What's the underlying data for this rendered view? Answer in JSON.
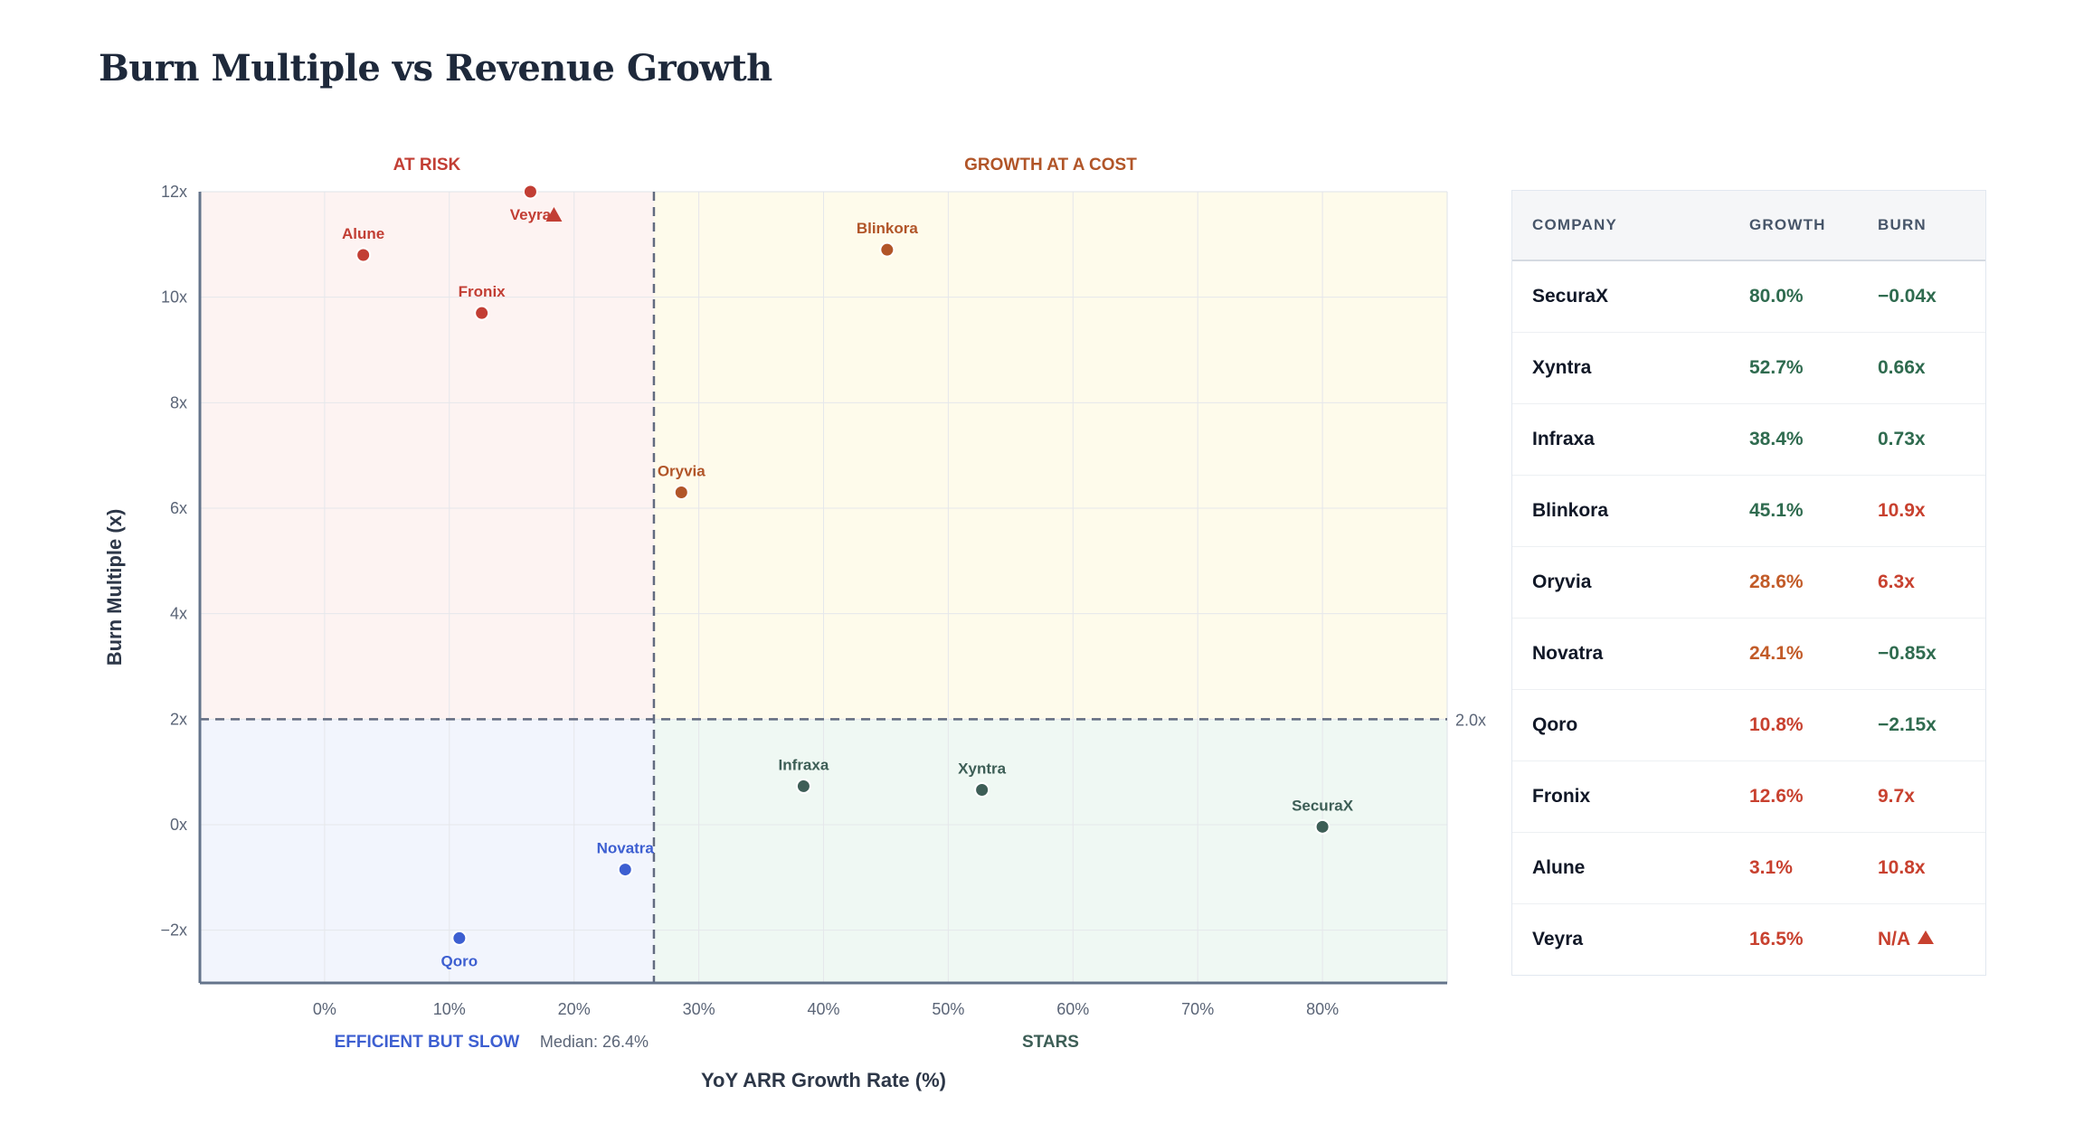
{
  "title": "Burn Multiple vs Revenue Growth",
  "colors": {
    "red": "#c23e34",
    "orange": "#b15528",
    "green": "#3d5e56",
    "blue": "#3d5fd1",
    "axis": "#64748b",
    "table_green": "#2f6b4f",
    "table_red": "#c8412f",
    "table_orange": "#c25b28"
  },
  "chart_data": {
    "type": "scatter",
    "xlabel": "YoY ARR Growth Rate (%)",
    "ylabel": "Burn Multiple (x)",
    "xlim": [
      -10,
      90
    ],
    "ylim": [
      -3,
      12
    ],
    "x_ticks": [
      0,
      10,
      20,
      30,
      40,
      50,
      60,
      70,
      80
    ],
    "x_tick_labels": [
      "0%",
      "10%",
      "20%",
      "30%",
      "40%",
      "50%",
      "60%",
      "70%",
      "80%"
    ],
    "y_ticks": [
      -2,
      0,
      2,
      4,
      6,
      8,
      10,
      12
    ],
    "y_tick_labels": [
      "−2x",
      "0x",
      "2x",
      "4x",
      "6x",
      "8x",
      "10x",
      "12x"
    ],
    "grid": true,
    "median_x": 26.4,
    "median_label": "Median: 26.4%",
    "threshold_y": 2,
    "threshold_label": "2.0x",
    "quadrants": [
      {
        "name": "at-risk",
        "label": "AT RISK",
        "color": "red"
      },
      {
        "name": "growth-at-a-cost",
        "label": "GROWTH AT A COST",
        "color": "orange"
      },
      {
        "name": "efficient-but-slow",
        "label": "EFFICIENT BUT SLOW",
        "color": "blue"
      },
      {
        "name": "stars",
        "label": "STARS",
        "color": "green"
      }
    ],
    "points": [
      {
        "name": "SecuraX",
        "x": 80.0,
        "y": -0.04,
        "quadrant": "stars",
        "label_pos": "above"
      },
      {
        "name": "Xyntra",
        "x": 52.7,
        "y": 0.66,
        "quadrant": "stars",
        "label_pos": "above"
      },
      {
        "name": "Infraxa",
        "x": 38.4,
        "y": 0.73,
        "quadrant": "stars",
        "label_pos": "above"
      },
      {
        "name": "Blinkora",
        "x": 45.1,
        "y": 10.9,
        "quadrant": "growth-at-a-cost",
        "label_pos": "above"
      },
      {
        "name": "Oryvia",
        "x": 28.6,
        "y": 6.3,
        "quadrant": "growth-at-a-cost",
        "label_pos": "above"
      },
      {
        "name": "Novatra",
        "x": 24.1,
        "y": -0.85,
        "quadrant": "efficient-but-slow",
        "label_pos": "above"
      },
      {
        "name": "Qoro",
        "x": 10.8,
        "y": -2.15,
        "quadrant": "efficient-but-slow",
        "label_pos": "below"
      },
      {
        "name": "Fronix",
        "x": 12.6,
        "y": 9.7,
        "quadrant": "at-risk",
        "label_pos": "above"
      },
      {
        "name": "Alune",
        "x": 3.1,
        "y": 10.8,
        "quadrant": "at-risk",
        "label_pos": "above"
      },
      {
        "name": "Veyra",
        "x": 16.5,
        "y": 12,
        "quadrant": "at-risk",
        "label_pos": "below",
        "clipped": true
      }
    ]
  },
  "table": {
    "headers": {
      "company": "COMPANY",
      "growth": "GROWTH",
      "burn": "BURN"
    },
    "rows": [
      {
        "company": "SecuraX",
        "growth": "80.0%",
        "burn": "−0.04x",
        "growth_color": "green",
        "burn_color": "green"
      },
      {
        "company": "Xyntra",
        "growth": "52.7%",
        "burn": "0.66x",
        "growth_color": "green",
        "burn_color": "green"
      },
      {
        "company": "Infraxa",
        "growth": "38.4%",
        "burn": "0.73x",
        "growth_color": "green",
        "burn_color": "green"
      },
      {
        "company": "Blinkora",
        "growth": "45.1%",
        "burn": "10.9x",
        "growth_color": "green",
        "burn_color": "red"
      },
      {
        "company": "Oryvia",
        "growth": "28.6%",
        "burn": "6.3x",
        "growth_color": "orange",
        "burn_color": "red"
      },
      {
        "company": "Novatra",
        "growth": "24.1%",
        "burn": "−0.85x",
        "growth_color": "orange",
        "burn_color": "green"
      },
      {
        "company": "Qoro",
        "growth": "10.8%",
        "burn": "−2.15x",
        "growth_color": "red",
        "burn_color": "green"
      },
      {
        "company": "Fronix",
        "growth": "12.6%",
        "burn": "9.7x",
        "growth_color": "red",
        "burn_color": "red"
      },
      {
        "company": "Alune",
        "growth": "3.1%",
        "burn": "10.8x",
        "growth_color": "red",
        "burn_color": "red"
      },
      {
        "company": "Veyra",
        "growth": "16.5%",
        "burn": "N/A",
        "growth_color": "red",
        "burn_color": "red",
        "warning": true
      }
    ]
  }
}
